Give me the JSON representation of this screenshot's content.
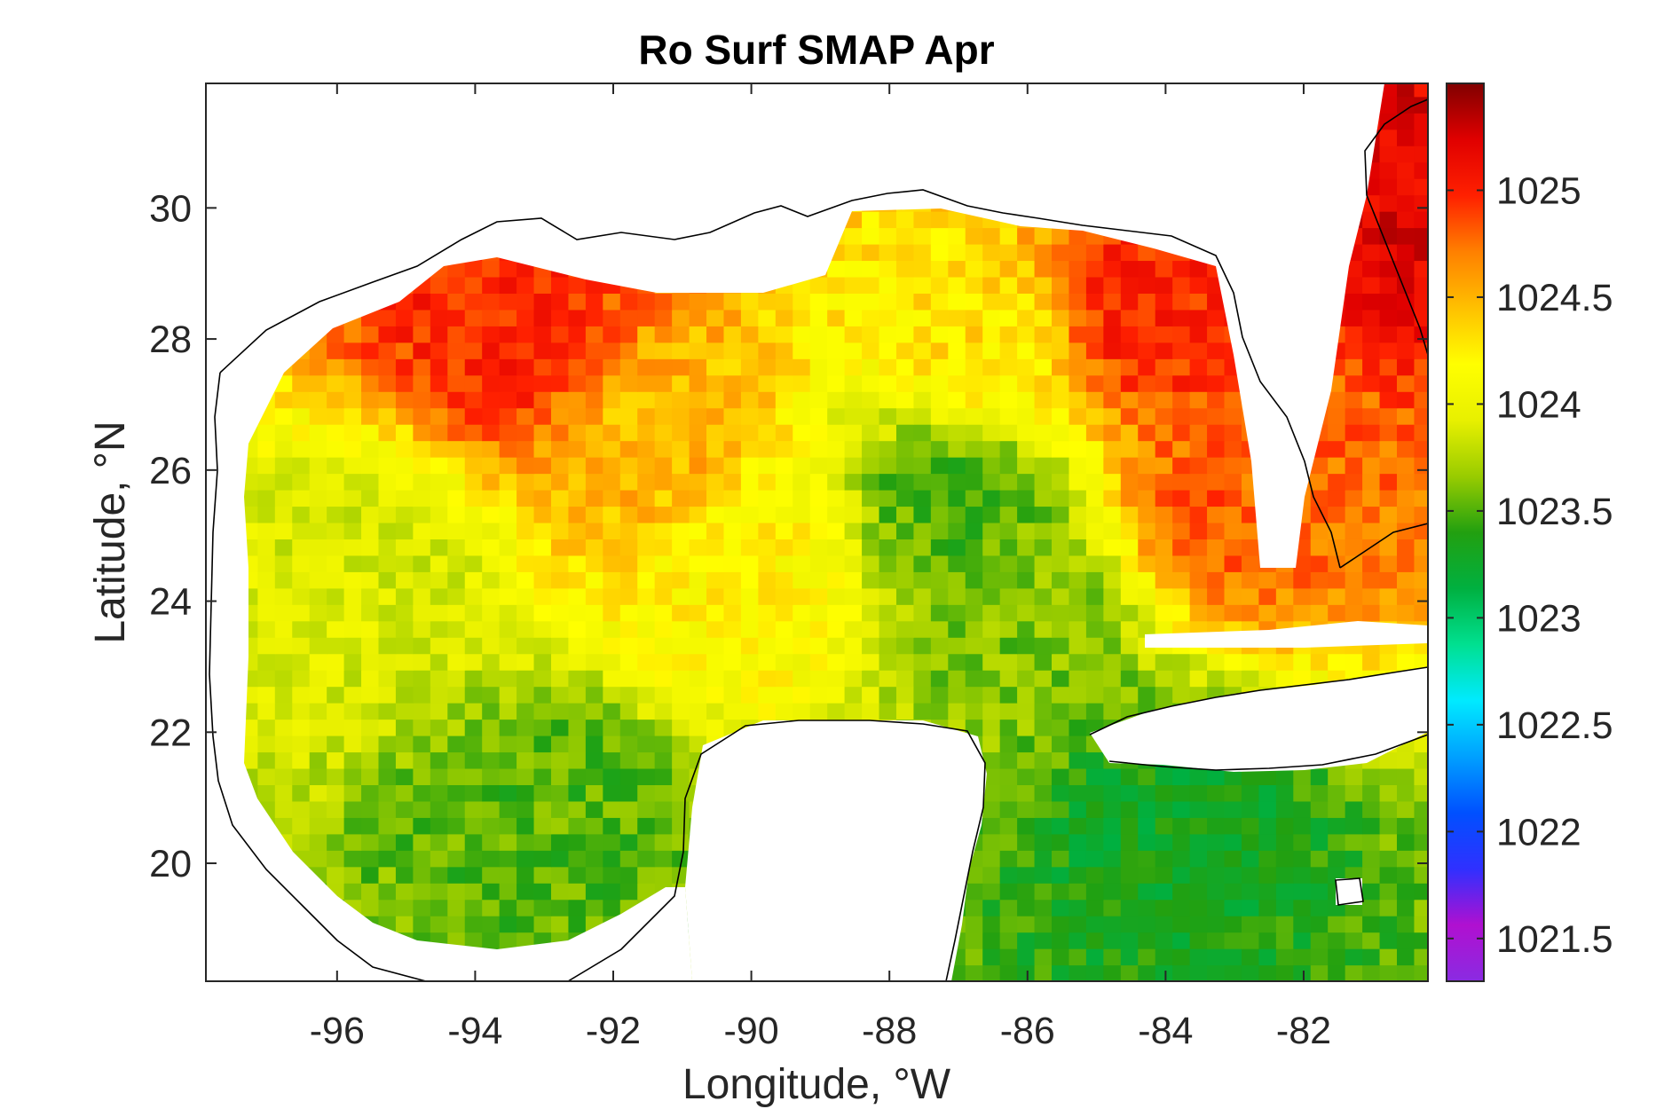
{
  "chart_data": {
    "type": "heatmap",
    "title": "Ro Surf SMAP Apr",
    "xlabel": "Longitude, °W",
    "ylabel": "Latitude, °N",
    "xlim": [
      -97.9,
      -80.2
    ],
    "ylim": [
      18.2,
      31.9
    ],
    "x_ticks": [
      -96,
      -94,
      -92,
      -90,
      -88,
      -86,
      -84,
      -82
    ],
    "x_tick_labels": [
      "-96",
      "-94",
      "-92",
      "-90",
      "-88",
      "-86",
      "-84",
      "-82"
    ],
    "y_ticks": [
      20,
      22,
      24,
      26,
      28,
      30
    ],
    "y_tick_labels": [
      "20",
      "22",
      "24",
      "26",
      "28",
      "30"
    ],
    "colorbar": {
      "position": "right",
      "clim": [
        1021.3,
        1025.5
      ],
      "ticks": [
        1021.5,
        1022,
        1022.5,
        1023,
        1023.5,
        1024,
        1024.5,
        1025
      ],
      "tick_labels": [
        "1021.5",
        "1022",
        "1022.5",
        "1023",
        "1023.5",
        "1024",
        "1024.5",
        "1025"
      ],
      "colormap": [
        "#8a2be2",
        "#b010d0",
        "#3030ff",
        "#0050ff",
        "#00a0ff",
        "#00eaff",
        "#00e090",
        "#00b040",
        "#22a010",
        "#99cc00",
        "#e8f000",
        "#ffff00",
        "#ffc000",
        "#ff8000",
        "#ff2000",
        "#e00000",
        "#800000"
      ]
    },
    "grid_resolution_deg": 0.25,
    "field_description_points": [
      {
        "lon": -93.5,
        "lat": 28.2,
        "value": 1025.0
      },
      {
        "lon": -91.5,
        "lat": 26.5,
        "value": 1024.5
      },
      {
        "lon": -95.5,
        "lat": 24.5,
        "value": 1023.9
      },
      {
        "lon": -93.0,
        "lat": 20.5,
        "value": 1023.5
      },
      {
        "lon": -87.0,
        "lat": 25.5,
        "value": 1023.5
      },
      {
        "lon": -86.0,
        "lat": 23.5,
        "value": 1023.6
      },
      {
        "lon": -84.3,
        "lat": 28.5,
        "value": 1025.0
      },
      {
        "lon": -83.0,
        "lat": 25.5,
        "value": 1024.8
      },
      {
        "lon": -86.5,
        "lat": 28.0,
        "value": 1024.3
      },
      {
        "lon": -84.0,
        "lat": 20.5,
        "value": 1023.3
      },
      {
        "lon": -80.5,
        "lat": 30.5,
        "value": 1025.2
      },
      {
        "lon": -90.0,
        "lat": 24.5,
        "value": 1024.2
      }
    ],
    "colors": {
      "axes": "#262626",
      "coastline": "#000000",
      "background": "#ffffff"
    }
  }
}
